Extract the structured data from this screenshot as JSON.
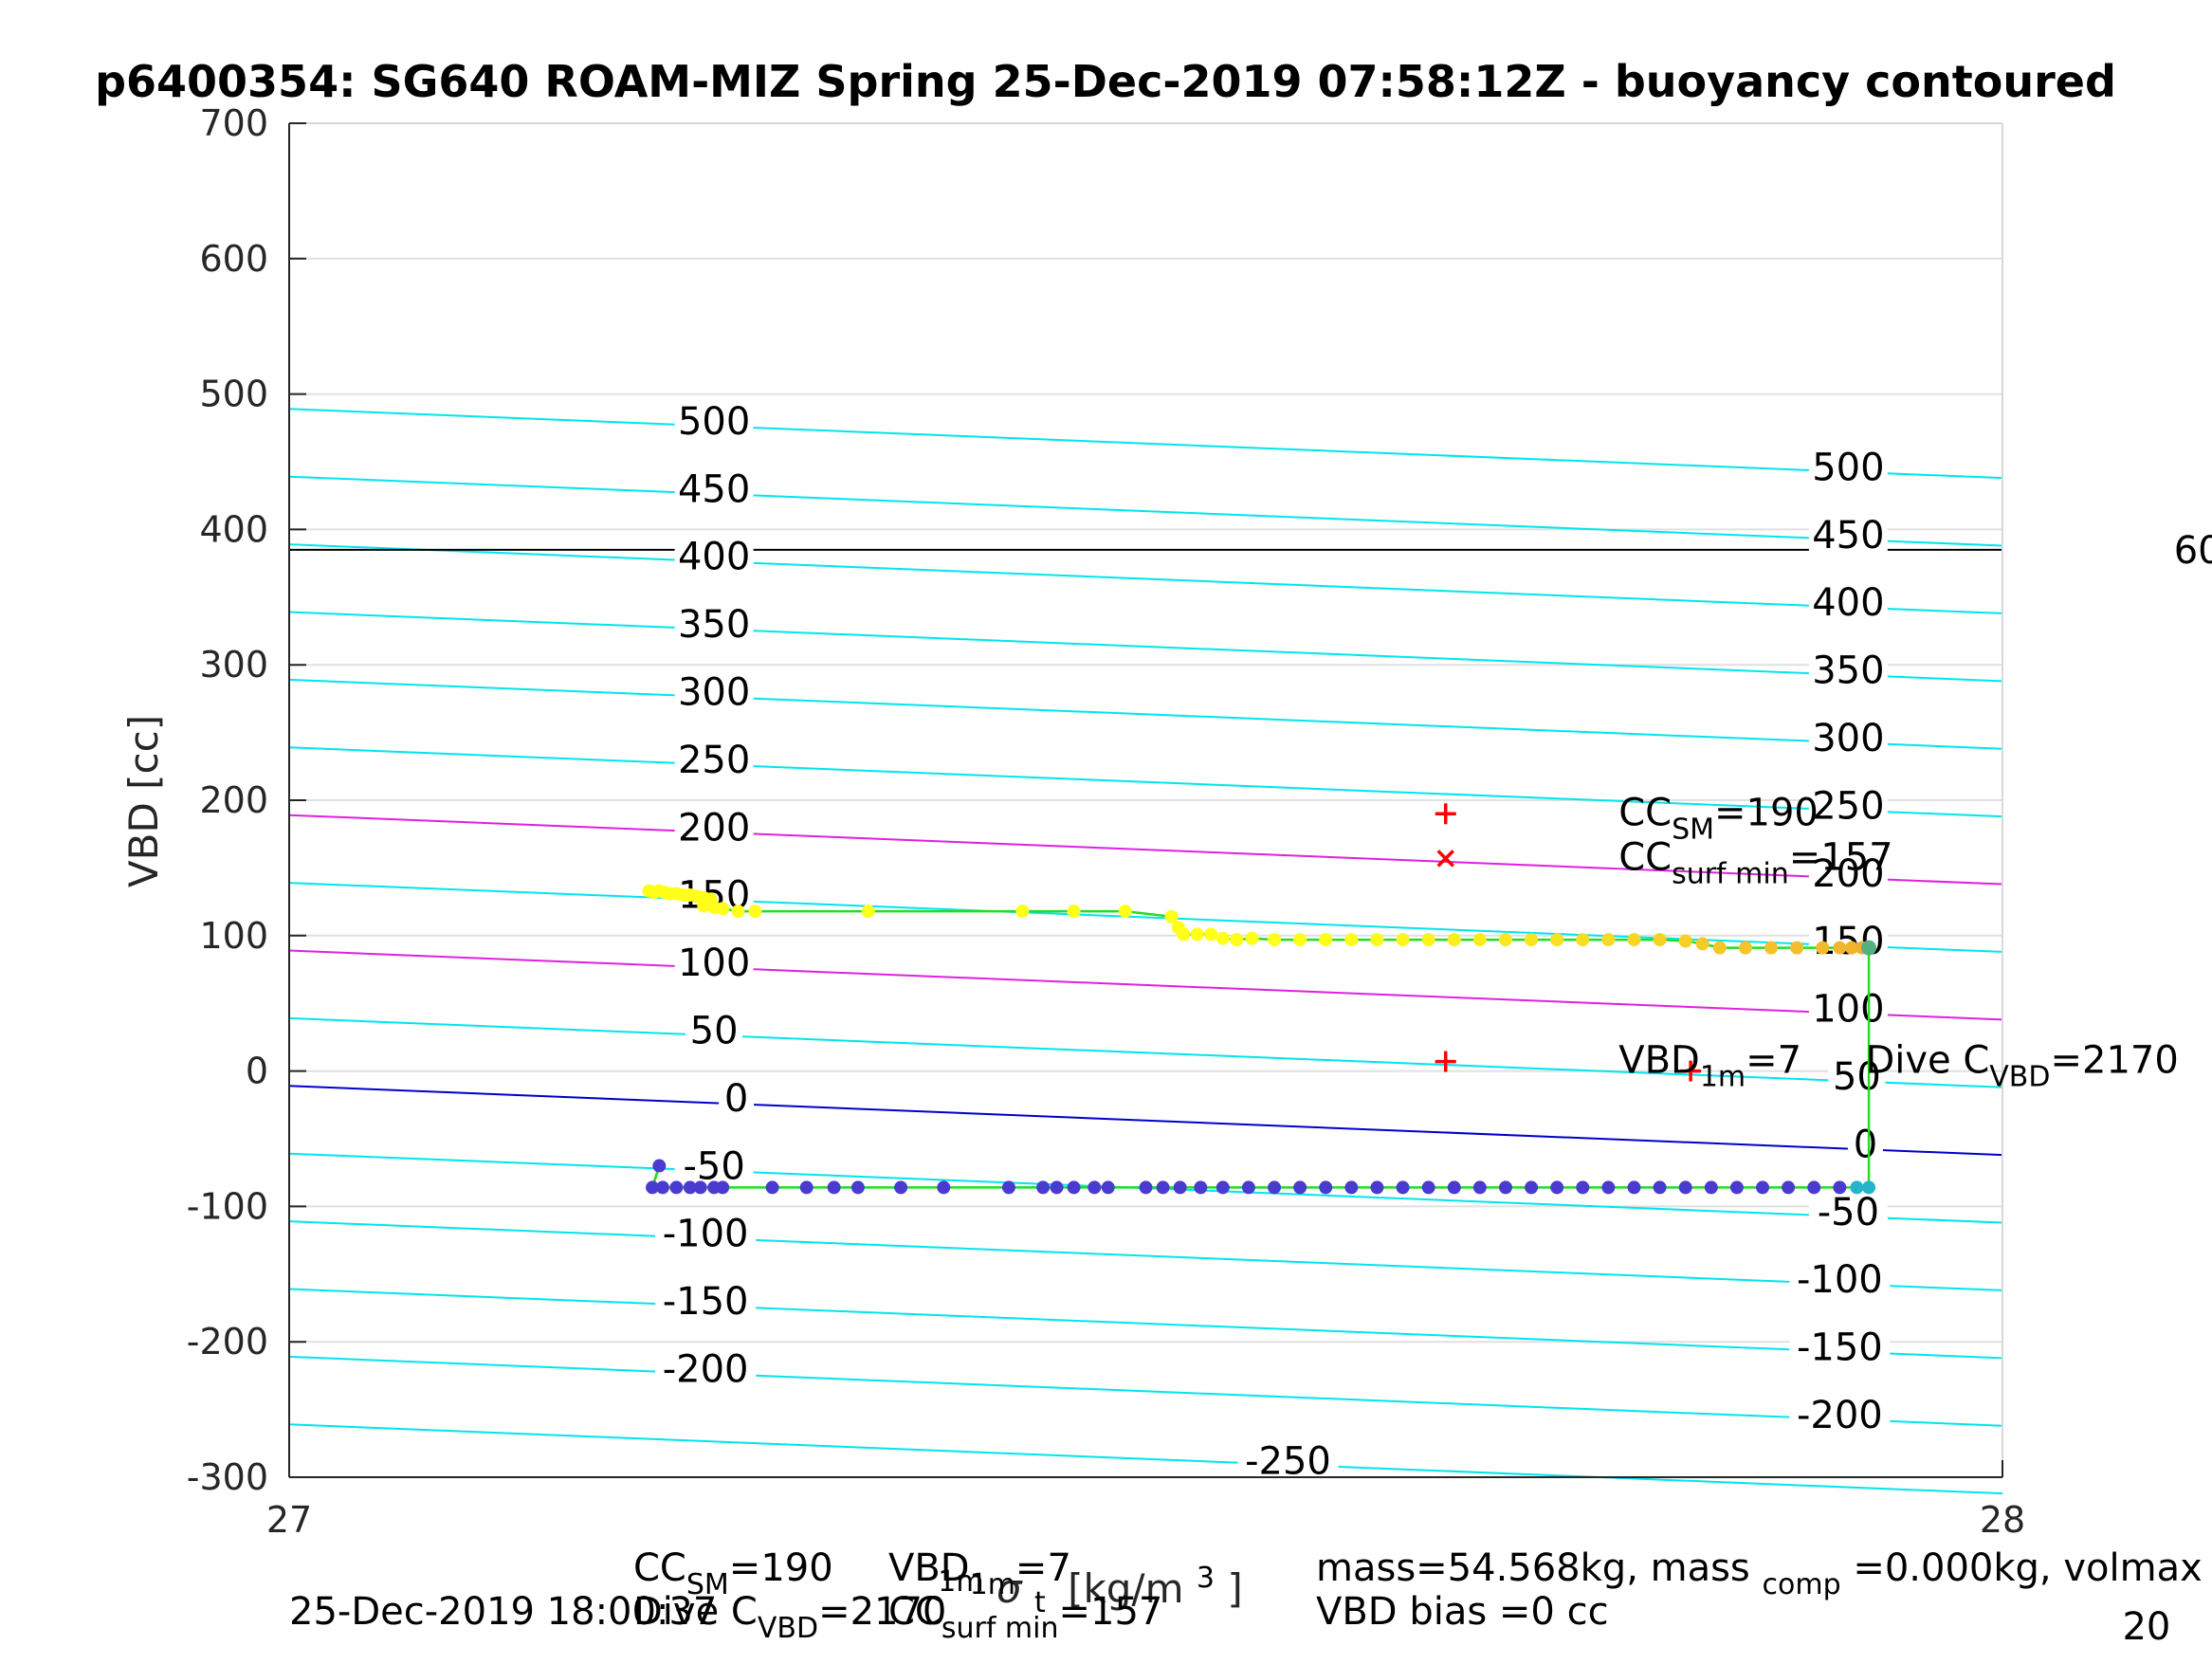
{
  "chart_data": {
    "type": "scatter",
    "title": "p6400354: SG640 ROAM-MIZ Spring 25-Dec-2019 07:58:12Z - buoyancy contoured",
    "ylabel": "VBD [cc]",
    "xlabel_parts": {
      "main": "σ",
      "sub": "t",
      "sup": "1m",
      "unit": "[kg/m",
      "unit_sup": "3",
      "unit_end": "]"
    },
    "xlim": [
      27,
      28
    ],
    "ylim": [
      -300,
      700
    ],
    "xticks": [
      "27",
      "28"
    ],
    "yticks": [
      "-300",
      "-200",
      "-100",
      "0",
      "100",
      "200",
      "300",
      "400",
      "500",
      "600",
      "700"
    ],
    "grid": true,
    "colors": {
      "contour": "#00e5ee",
      "magenta": "#e020e0",
      "zero_line": "#0000cc",
      "ref_line": "#000000",
      "trace": "#22dd22",
      "dive_points": "#4a3bd0",
      "climb_points_start": "#ffff1a",
      "climb_points_end": "#f0a830",
      "marker": "#ff0000"
    },
    "contours": [
      {
        "level": 500,
        "y0": 489,
        "y1": 438
      },
      {
        "level": 450,
        "y0": 439,
        "y1": 388
      },
      {
        "level": 400,
        "y0": 389,
        "y1": 338
      },
      {
        "level": 350,
        "y0": 339,
        "y1": 288
      },
      {
        "level": 300,
        "y0": 289,
        "y1": 238
      },
      {
        "level": 250,
        "y0": 239,
        "y1": 188
      },
      {
        "level": 200,
        "y0": 189,
        "y1": 138
      },
      {
        "level": 150,
        "y0": 139,
        "y1": 88
      },
      {
        "level": 100,
        "y0": 89,
        "y1": 38
      },
      {
        "level": 50,
        "y0": 39,
        "y1": -12
      },
      {
        "level": 0,
        "y0": -11,
        "y1": -62
      },
      {
        "level": -50,
        "y0": -61,
        "y1": -112
      },
      {
        "level": -100,
        "y0": -111,
        "y1": -162
      },
      {
        "level": -150,
        "y0": -161,
        "y1": -212
      },
      {
        "level": -200,
        "y0": -211,
        "y1": -262
      },
      {
        "level": -250,
        "y0": -261,
        "y1": -312
      }
    ],
    "magenta_levels": [
      200,
      100
    ],
    "zero_level": 0,
    "reference_vbd": 385,
    "contour_labels_left": [
      {
        "text": "500",
        "x": 27.248,
        "y": 476
      },
      {
        "text": "450",
        "x": 27.248,
        "y": 426
      },
      {
        "text": "400",
        "x": 27.248,
        "y": 376
      },
      {
        "text": "350",
        "x": 27.248,
        "y": 326
      },
      {
        "text": "300",
        "x": 27.248,
        "y": 276
      },
      {
        "text": "250",
        "x": 27.248,
        "y": 226
      },
      {
        "text": "200",
        "x": 27.248,
        "y": 176
      },
      {
        "text": "150",
        "x": 27.248,
        "y": 126
      },
      {
        "text": "100",
        "x": 27.248,
        "y": 76
      },
      {
        "text": "50",
        "x": 27.248,
        "y": 26
      },
      {
        "text": "0",
        "x": 27.261,
        "y": -24
      },
      {
        "text": "-50",
        "x": 27.248,
        "y": -74
      },
      {
        "text": "-100",
        "x": 27.243,
        "y": -124
      },
      {
        "text": "-150",
        "x": 27.243,
        "y": -174
      },
      {
        "text": "-200",
        "x": 27.243,
        "y": -224
      },
      {
        "text": "-250",
        "x": 27.583,
        "y": -292
      }
    ],
    "contour_labels_right": [
      {
        "text": "500",
        "x": 27.91,
        "y": 442
      },
      {
        "text": "450",
        "x": 27.91,
        "y": 392
      },
      {
        "text": "400",
        "x": 27.91,
        "y": 342
      },
      {
        "text": "350",
        "x": 27.91,
        "y": 292
      },
      {
        "text": "300",
        "x": 27.91,
        "y": 242
      },
      {
        "text": "250",
        "x": 27.91,
        "y": 192
      },
      {
        "text": "200",
        "x": 27.91,
        "y": 142
      },
      {
        "text": "150",
        "x": 27.91,
        "y": 92
      },
      {
        "text": "100",
        "x": 27.91,
        "y": 42
      },
      {
        "text": "50",
        "x": 27.915,
        "y": -8
      },
      {
        "text": "0",
        "x": 27.92,
        "y": -58
      },
      {
        "text": "-50",
        "x": 27.91,
        "y": -108
      },
      {
        "text": "-100",
        "x": 27.905,
        "y": -158
      },
      {
        "text": "-150",
        "x": 27.905,
        "y": -208
      },
      {
        "text": "-200",
        "x": 27.905,
        "y": -258
      }
    ],
    "climb_series": [
      {
        "x": 27.21,
        "y": 133
      },
      {
        "x": 27.213,
        "y": 132
      },
      {
        "x": 27.216,
        "y": 133
      },
      {
        "x": 27.219,
        "y": 132
      },
      {
        "x": 27.222,
        "y": 131
      },
      {
        "x": 27.226,
        "y": 131
      },
      {
        "x": 27.23,
        "y": 130
      },
      {
        "x": 27.234,
        "y": 130
      },
      {
        "x": 27.238,
        "y": 129
      },
      {
        "x": 27.242,
        "y": 128
      },
      {
        "x": 27.246,
        "y": 127
      },
      {
        "x": 27.242,
        "y": 122
      },
      {
        "x": 27.248,
        "y": 121
      },
      {
        "x": 27.253,
        "y": 120
      },
      {
        "x": 27.262,
        "y": 118
      },
      {
        "x": 27.272,
        "y": 118
      },
      {
        "x": 27.338,
        "y": 118
      },
      {
        "x": 27.428,
        "y": 118
      },
      {
        "x": 27.458,
        "y": 118
      },
      {
        "x": 27.488,
        "y": 118
      },
      {
        "x": 27.515,
        "y": 114
      },
      {
        "x": 27.519,
        "y": 106
      },
      {
        "x": 27.522,
        "y": 101
      },
      {
        "x": 27.53,
        "y": 101
      },
      {
        "x": 27.538,
        "y": 101
      },
      {
        "x": 27.545,
        "y": 98
      },
      {
        "x": 27.553,
        "y": 97
      },
      {
        "x": 27.562,
        "y": 98
      },
      {
        "x": 27.575,
        "y": 97
      },
      {
        "x": 27.59,
        "y": 97
      },
      {
        "x": 27.605,
        "y": 97
      },
      {
        "x": 27.62,
        "y": 97
      },
      {
        "x": 27.635,
        "y": 97
      },
      {
        "x": 27.65,
        "y": 97
      },
      {
        "x": 27.665,
        "y": 97
      },
      {
        "x": 27.68,
        "y": 97
      },
      {
        "x": 27.695,
        "y": 97
      },
      {
        "x": 27.71,
        "y": 97
      },
      {
        "x": 27.725,
        "y": 97
      },
      {
        "x": 27.74,
        "y": 97
      },
      {
        "x": 27.755,
        "y": 97
      },
      {
        "x": 27.77,
        "y": 97
      },
      {
        "x": 27.785,
        "y": 97
      },
      {
        "x": 27.8,
        "y": 97
      },
      {
        "x": 27.815,
        "y": 96
      },
      {
        "x": 27.825,
        "y": 94
      },
      {
        "x": 27.835,
        "y": 91
      },
      {
        "x": 27.85,
        "y": 91
      },
      {
        "x": 27.865,
        "y": 91
      },
      {
        "x": 27.88,
        "y": 91
      },
      {
        "x": 27.895,
        "y": 91
      },
      {
        "x": 27.905,
        "y": 91
      },
      {
        "x": 27.912,
        "y": 91
      },
      {
        "x": 27.918,
        "y": 91
      },
      {
        "x": 27.922,
        "y": 91
      }
    ],
    "dive_series": [
      {
        "x": 27.216,
        "y": -70
      },
      {
        "x": 27.212,
        "y": -86
      },
      {
        "x": 27.218,
        "y": -86
      },
      {
        "x": 27.226,
        "y": -86
      },
      {
        "x": 27.234,
        "y": -86
      },
      {
        "x": 27.24,
        "y": -86
      },
      {
        "x": 27.248,
        "y": -86
      },
      {
        "x": 27.253,
        "y": -86
      },
      {
        "x": 27.282,
        "y": -86
      },
      {
        "x": 27.302,
        "y": -86
      },
      {
        "x": 27.318,
        "y": -86
      },
      {
        "x": 27.332,
        "y": -86
      },
      {
        "x": 27.357,
        "y": -86
      },
      {
        "x": 27.382,
        "y": -86
      },
      {
        "x": 27.42,
        "y": -86
      },
      {
        "x": 27.44,
        "y": -86
      },
      {
        "x": 27.448,
        "y": -86
      },
      {
        "x": 27.458,
        "y": -86
      },
      {
        "x": 27.47,
        "y": -86
      },
      {
        "x": 27.478,
        "y": -86
      },
      {
        "x": 27.5,
        "y": -86
      },
      {
        "x": 27.51,
        "y": -86
      },
      {
        "x": 27.52,
        "y": -86
      },
      {
        "x": 27.532,
        "y": -86
      },
      {
        "x": 27.545,
        "y": -86
      },
      {
        "x": 27.56,
        "y": -86
      },
      {
        "x": 27.575,
        "y": -86
      },
      {
        "x": 27.59,
        "y": -86
      },
      {
        "x": 27.605,
        "y": -86
      },
      {
        "x": 27.62,
        "y": -86
      },
      {
        "x": 27.635,
        "y": -86
      },
      {
        "x": 27.65,
        "y": -86
      },
      {
        "x": 27.665,
        "y": -86
      },
      {
        "x": 27.68,
        "y": -86
      },
      {
        "x": 27.695,
        "y": -86
      },
      {
        "x": 27.71,
        "y": -86
      },
      {
        "x": 27.725,
        "y": -86
      },
      {
        "x": 27.74,
        "y": -86
      },
      {
        "x": 27.755,
        "y": -86
      },
      {
        "x": 27.77,
        "y": -86
      },
      {
        "x": 27.785,
        "y": -86
      },
      {
        "x": 27.8,
        "y": -86
      },
      {
        "x": 27.815,
        "y": -86
      },
      {
        "x": 27.83,
        "y": -86
      },
      {
        "x": 27.845,
        "y": -86
      },
      {
        "x": 27.86,
        "y": -86
      },
      {
        "x": 27.875,
        "y": -86
      },
      {
        "x": 27.89,
        "y": -86
      },
      {
        "x": 27.905,
        "y": -86
      },
      {
        "x": 27.915,
        "y": -86
      },
      {
        "x": 27.922,
        "y": -86
      }
    ],
    "markers": [
      {
        "type": "+",
        "x": 27.675,
        "y": 190,
        "note": "CC_SM"
      },
      {
        "type": "x",
        "x": 27.675,
        "y": 157,
        "note": "CC_surf_min"
      },
      {
        "type": "+",
        "x": 27.675,
        "y": 7,
        "note": "VBD_1m"
      },
      {
        "type": "+",
        "x": 27.818,
        "y": 0,
        "note": "Dive C_VBD"
      }
    ],
    "annotations": [
      {
        "base": "CC",
        "sub": "SM",
        "tail": "=190",
        "x": 27.776,
        "y": 190
      },
      {
        "base": "CC",
        "sub": "surf min",
        "tail": "=157",
        "x": 27.776,
        "y": 157
      },
      {
        "base": "VBD",
        "sub": "1m",
        "tail": "=7",
        "x": 27.776,
        "y": 7
      },
      {
        "base": "Dive C",
        "sub": "VBD",
        "tail": "=2170",
        "x": 27.92,
        "y": 7
      }
    ],
    "right_cutoff_labels": [
      {
        "text": "60",
        "x": 28.1,
        "y": 385
      },
      {
        "text": "20",
        "x": 28.07,
        "y": -410
      }
    ],
    "footer": {
      "line1_left": [
        {
          "base": "CC",
          "sub": "SM",
          "tail": "=190"
        },
        {
          "base": "VBD",
          "sub": "1m",
          "tail": "=7"
        }
      ],
      "line2_left_date": "25-Dec-2019 18:00:37",
      "line2_left": [
        {
          "base": "Dive C",
          "sub": "VBD",
          "tail": "=2170"
        },
        {
          "base": "CC",
          "sub": "surf min",
          "tail": "=157"
        }
      ],
      "line1_right": {
        "a": "mass=54.568kg, mass",
        "sub": "comp",
        "b": "=0.000kg, volmax"
      },
      "line2_right": "VBD bias =0 cc"
    }
  }
}
